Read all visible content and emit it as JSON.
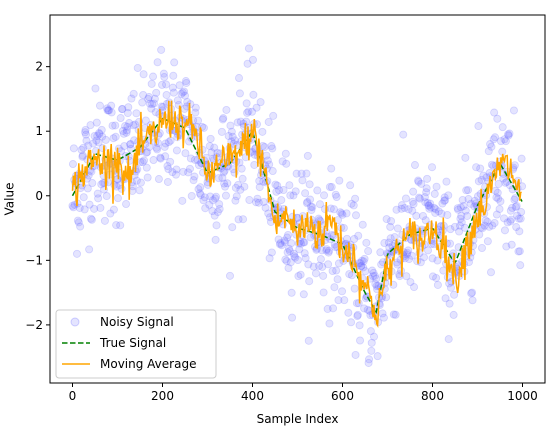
{
  "chart_data": {
    "type": "line",
    "title": "",
    "xlabel": "Sample Index",
    "ylabel": "Value",
    "xlim": [
      -50,
      1050
    ],
    "ylim": [
      -2.9,
      2.8
    ],
    "xticks": [
      0,
      200,
      400,
      600,
      800,
      1000
    ],
    "yticks": [
      -2,
      -1,
      0,
      1,
      2
    ],
    "grid": false,
    "legend_position": "lower-left",
    "legend": [
      "Noisy Signal",
      "True Signal",
      "Moving Average"
    ],
    "colors": {
      "noisy": "#6b6bff",
      "true": "#008000",
      "moving": "#ffa500"
    },
    "series": [
      {
        "name": "Noisy Signal",
        "type": "scatter",
        "n_points": 1000,
        "x_range": [
          0,
          999
        ],
        "noise_std": 0.5,
        "note_model": "true signal plus noise"
      },
      {
        "name": "True Signal",
        "type": "line",
        "style": "dashed",
        "x": [
          0,
          50,
          100,
          150,
          200,
          250,
          300,
          350,
          400,
          450,
          500,
          550,
          600,
          650,
          675,
          700,
          750,
          800,
          850,
          900,
          950,
          1000
        ],
        "y": [
          0.0,
          0.65,
          0.55,
          0.75,
          1.2,
          1.05,
          0.35,
          0.5,
          1.0,
          -0.25,
          -0.5,
          -0.6,
          -0.75,
          -1.5,
          -1.8,
          -0.9,
          -0.6,
          -0.5,
          -1.05,
          -0.15,
          0.5,
          -0.1
        ]
      },
      {
        "name": "Moving Average",
        "type": "line",
        "x": [
          0,
          25,
          50,
          75,
          100,
          125,
          150,
          175,
          200,
          225,
          250,
          275,
          300,
          325,
          350,
          375,
          400,
          425,
          450,
          475,
          500,
          525,
          550,
          575,
          600,
          625,
          650,
          675,
          700,
          725,
          750,
          775,
          800,
          825,
          850,
          875,
          900,
          925,
          950,
          975,
          1000
        ],
        "y": [
          0.05,
          0.4,
          0.55,
          0.5,
          0.6,
          0.2,
          0.75,
          0.9,
          1.15,
          1.2,
          1.1,
          0.95,
          0.3,
          0.45,
          0.55,
          0.7,
          1.0,
          0.45,
          -0.45,
          -0.3,
          -0.6,
          -0.4,
          -0.6,
          -0.35,
          -0.8,
          -0.95,
          -1.4,
          -1.8,
          -1.2,
          -0.8,
          -0.65,
          -0.7,
          -0.5,
          -0.75,
          -1.3,
          -0.8,
          -0.3,
          0.0,
          0.5,
          0.4,
          -0.1
        ]
      }
    ]
  }
}
